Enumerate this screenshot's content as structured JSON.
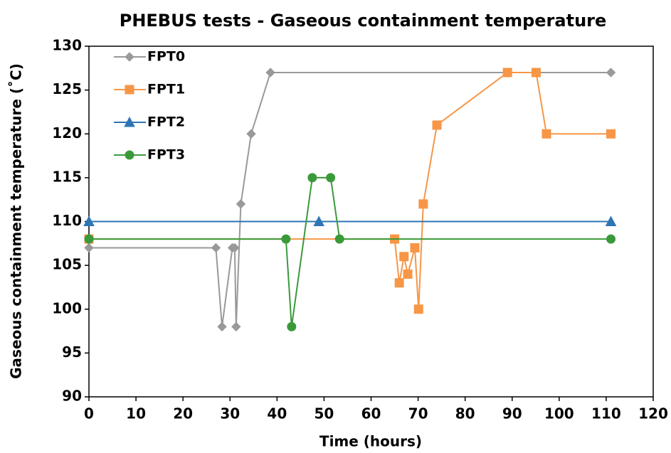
{
  "chart_data": {
    "type": "line",
    "title": "PHEBUS tests - Gaseous containment temperature",
    "x_label": "Time (hours)",
    "y_label": "Gaseous containment temperature (˚C)",
    "xlim": [
      0,
      120
    ],
    "xticks": [
      0,
      10,
      20,
      30,
      40,
      50,
      60,
      70,
      80,
      90,
      100,
      110,
      120
    ],
    "ylim": [
      90,
      130
    ],
    "yticks": [
      90,
      95,
      100,
      105,
      110,
      115,
      120,
      125,
      130
    ],
    "grid": false,
    "legend": "upper left",
    "series": [
      {
        "name": "FPT0",
        "color": "#999999",
        "marker": "diamond",
        "x": [
          0,
          27,
          28.3,
          30.5,
          31,
          31.3,
          32.3,
          34.5,
          38.6,
          111
        ],
        "values": [
          107,
          107,
          98,
          107,
          107,
          98,
          112,
          120,
          127,
          127
        ]
      },
      {
        "name": "FPT1",
        "color": "#f79646",
        "marker": "square",
        "x": [
          0,
          65,
          66,
          67,
          67.8,
          69.3,
          70.1,
          71.1,
          74,
          89,
          95.1,
          97.3,
          111
        ],
        "values": [
          108,
          108,
          103,
          106,
          104,
          107,
          100,
          112,
          121,
          127,
          127,
          120,
          120
        ]
      },
      {
        "name": "FPT2",
        "color": "#2e75b6",
        "marker": "triangle",
        "x": [
          0,
          48.9,
          111
        ],
        "values": [
          110,
          110,
          110
        ]
      },
      {
        "name": "FPT3",
        "color": "#3a9a3a",
        "marker": "circle",
        "x": [
          0,
          41.9,
          43.1,
          47.5,
          51.4,
          53.3,
          111
        ],
        "values": [
          108,
          108,
          98,
          115,
          115,
          108,
          108
        ]
      }
    ]
  }
}
